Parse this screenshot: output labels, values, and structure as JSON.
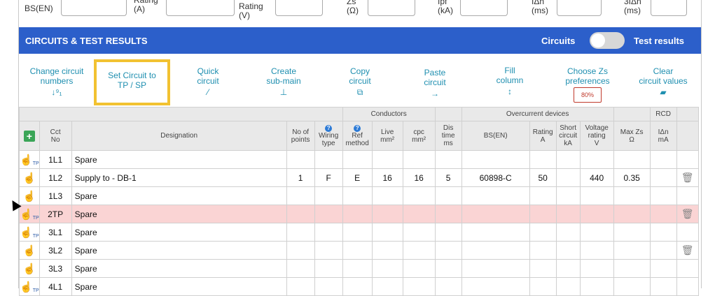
{
  "top_fields": [
    {
      "label": "BS(EN)"
    },
    {
      "label": "Rating\n(A)"
    },
    {
      "label": "Rating\n(V)"
    },
    {
      "label": "Zs\n(Ω)"
    },
    {
      "label": "Ipf\n(kA)"
    },
    {
      "label": "IΔn\n(ms)"
    },
    {
      "label": "3IΔn\n(ms)"
    }
  ],
  "header": {
    "title": "CIRCUITS & TEST RESULTS",
    "left_toggle_label": "Circuits",
    "right_toggle_label": "Test results"
  },
  "toolbar": {
    "change_circuit": "Change circuit\nnumbers",
    "set_circuit": "Set Circuit to\nTP / SP",
    "quick_circuit": "Quick\ncircuit",
    "create_submain": "Create\nsub-main",
    "copy_circuit": "Copy\ncircuit",
    "paste_circuit": "Paste\ncircuit",
    "fill_column": "Fill\ncolumn",
    "choose_zs": "Choose Zs\npreferences",
    "zs_badge": "80%",
    "clear_values": "Clear\ncircuit values"
  },
  "table": {
    "group_headers": {
      "conductors": "Conductors",
      "overcurrent": "Overcurrent devices",
      "rcd": "RCD"
    },
    "columns": {
      "cct_no": "Cct\nNo",
      "designation": "Designation",
      "no_points": "No of\npoints",
      "wiring": "Wiring\ntype",
      "ref": "Ref\nmethod",
      "live": "Live\nmm²",
      "cpc": "cpc\nmm²",
      "dis": "Dis\ntime\nms",
      "bsen": "BS(EN)",
      "rating": "Rating\nA",
      "short": "Short\ncircuit\nkA",
      "voltage": "Voltage\nrating\nV",
      "maxzs": "Max Zs\nΩ",
      "idn": "IΔn\nmA"
    },
    "rows": [
      {
        "cct": "1L1",
        "designation": "Spare",
        "points": "",
        "wiring": "",
        "ref": "",
        "live": "",
        "cpc": "",
        "dis": "",
        "bsen": "",
        "rating": "",
        "short": "",
        "voltage": "",
        "maxzs": "",
        "idn": "",
        "tp": "TP",
        "trash": ""
      },
      {
        "cct": "1L2",
        "designation": "Supply to - DB-1",
        "points": "1",
        "wiring": "F",
        "ref": "E",
        "live": "16",
        "cpc": "16",
        "dis": "5",
        "bsen": "60898-C",
        "rating": "50",
        "short": "",
        "voltage": "440",
        "maxzs": "0.35",
        "idn": "",
        "tp": "",
        "trash": "🗑"
      },
      {
        "cct": "1L3",
        "designation": "Spare",
        "points": "",
        "wiring": "",
        "ref": "",
        "live": "",
        "cpc": "",
        "dis": "",
        "bsen": "",
        "rating": "",
        "short": "",
        "voltage": "",
        "maxzs": "",
        "idn": "",
        "tp": "",
        "trash": ""
      },
      {
        "cct": "2TP",
        "designation": "Spare",
        "points": "",
        "wiring": "",
        "ref": "",
        "live": "",
        "cpc": "",
        "dis": "",
        "bsen": "",
        "rating": "",
        "short": "",
        "voltage": "",
        "maxzs": "",
        "idn": "",
        "tp": "TP",
        "trash": "🗑"
      },
      {
        "cct": "3L1",
        "designation": "Spare",
        "points": "",
        "wiring": "",
        "ref": "",
        "live": "",
        "cpc": "",
        "dis": "",
        "bsen": "",
        "rating": "",
        "short": "",
        "voltage": "",
        "maxzs": "",
        "idn": "",
        "tp": "TP",
        "trash": ""
      },
      {
        "cct": "3L2",
        "designation": "Spare",
        "points": "",
        "wiring": "",
        "ref": "",
        "live": "",
        "cpc": "",
        "dis": "",
        "bsen": "",
        "rating": "",
        "short": "",
        "voltage": "",
        "maxzs": "",
        "idn": "",
        "tp": "",
        "trash": "🗑"
      },
      {
        "cct": "3L3",
        "designation": "Spare",
        "points": "",
        "wiring": "",
        "ref": "",
        "live": "",
        "cpc": "",
        "dis": "",
        "bsen": "",
        "rating": "",
        "short": "",
        "voltage": "",
        "maxzs": "",
        "idn": "",
        "tp": "",
        "trash": ""
      },
      {
        "cct": "4L1",
        "designation": "Spare",
        "points": "",
        "wiring": "",
        "ref": "",
        "live": "",
        "cpc": "",
        "dis": "",
        "bsen": "",
        "rating": "",
        "short": "",
        "voltage": "",
        "maxzs": "",
        "idn": "",
        "tp": "TP",
        "trash": ""
      }
    ]
  }
}
